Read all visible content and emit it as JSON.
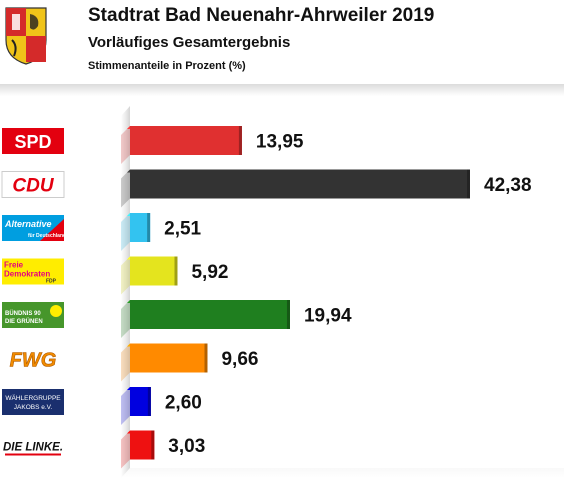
{
  "header": {
    "title": "Stadtrat Bad Neuenahr-Ahrweiler 2019",
    "subtitle": "Vorläufiges Gesamtergebnis",
    "caption": "Stimmenanteile in Prozent (%)"
  },
  "chart_data": {
    "type": "bar",
    "orientation": "horizontal",
    "categories": [
      "SPD",
      "CDU",
      "AfD",
      "FDP",
      "Bündnis 90 / Die Grünen",
      "FWG",
      "Wählergruppe Jakobs e.V.",
      "Die Linke"
    ],
    "values": [
      13.95,
      42.38,
      2.51,
      5.92,
      19.94,
      9.66,
      2.6,
      3.03
    ],
    "value_labels": [
      "13,95",
      "42,38",
      "2,51",
      "5,92",
      "19,94",
      "9,66",
      "2,60",
      "3,03"
    ],
    "colors": [
      "#e03030",
      "#333333",
      "#33c3f0",
      "#e4e41e",
      "#1f7f1f",
      "#ff8a00",
      "#0000e0",
      "#ee1111"
    ],
    "logo_texts": {
      "spd": "SPD",
      "cdu": "CDU",
      "afd": [
        "Alternative",
        "für Deutschland"
      ],
      "fdp": [
        "Freie",
        "Demokraten",
        "FDP"
      ],
      "gruene": [
        "BÜNDNIS 90",
        "DIE GRÜNEN"
      ],
      "fwg": "FWG",
      "jakobs": [
        "WÄHLERGRUPPE",
        "JAKOBS e.V."
      ],
      "linke": "DIE LINKE."
    },
    "xlim": [
      0,
      42.38
    ],
    "grid": false,
    "legend": "none"
  }
}
